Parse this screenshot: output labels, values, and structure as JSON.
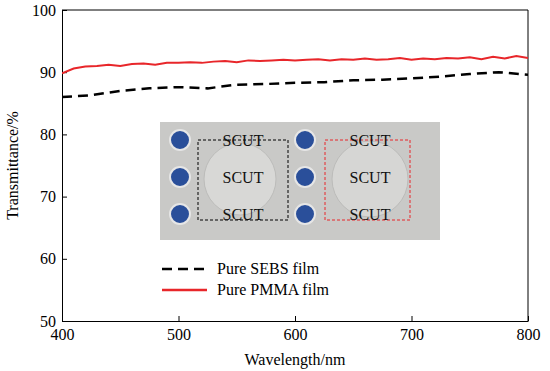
{
  "chart_data": {
    "type": "line",
    "x_label": "Wavelength/nm",
    "y_label": "Transmittance/%",
    "xlim": [
      400,
      800
    ],
    "ylim": [
      50,
      100
    ],
    "xticks": [
      400,
      500,
      600,
      700,
      800
    ],
    "yticks": [
      50,
      60,
      70,
      80,
      90,
      100
    ],
    "grid": false,
    "legend": "lower center",
    "annotations": [
      "SCUT",
      "SCUT",
      "SCUT",
      "SCUT",
      "SCUT",
      "SCUT"
    ],
    "series": [
      {
        "name": "Pure SEBS film",
        "color": "#000000",
        "line_style": "dashed",
        "x": [
          400,
          425,
          450,
          475,
          500,
          525,
          550,
          575,
          600,
          625,
          650,
          675,
          700,
          725,
          750,
          775,
          800
        ],
        "values": [
          86.0,
          86.3,
          87.0,
          87.4,
          87.6,
          87.4,
          88.0,
          88.1,
          88.3,
          88.4,
          88.7,
          88.8,
          89.0,
          89.3,
          89.7,
          90.0,
          89.6
        ]
      },
      {
        "name": "Pure PMMA film",
        "color": "#e8262a",
        "line_style": "solid",
        "x": [
          400,
          410,
          420,
          430,
          440,
          450,
          460,
          470,
          480,
          490,
          500,
          510,
          520,
          530,
          540,
          550,
          560,
          570,
          580,
          590,
          600,
          610,
          620,
          630,
          640,
          650,
          660,
          670,
          680,
          690,
          700,
          710,
          720,
          730,
          740,
          750,
          760,
          770,
          780,
          790,
          800
        ],
        "values": [
          89.8,
          90.6,
          90.9,
          91.0,
          91.2,
          91.0,
          91.3,
          91.4,
          91.2,
          91.5,
          91.5,
          91.6,
          91.5,
          91.7,
          91.8,
          91.6,
          91.9,
          91.8,
          91.9,
          92.0,
          91.9,
          92.0,
          92.1,
          91.9,
          92.1,
          92.0,
          92.2,
          92.0,
          92.1,
          92.3,
          92.0,
          92.2,
          92.1,
          92.3,
          92.2,
          92.4,
          92.1,
          92.5,
          92.2,
          92.6,
          92.3
        ]
      }
    ]
  }
}
